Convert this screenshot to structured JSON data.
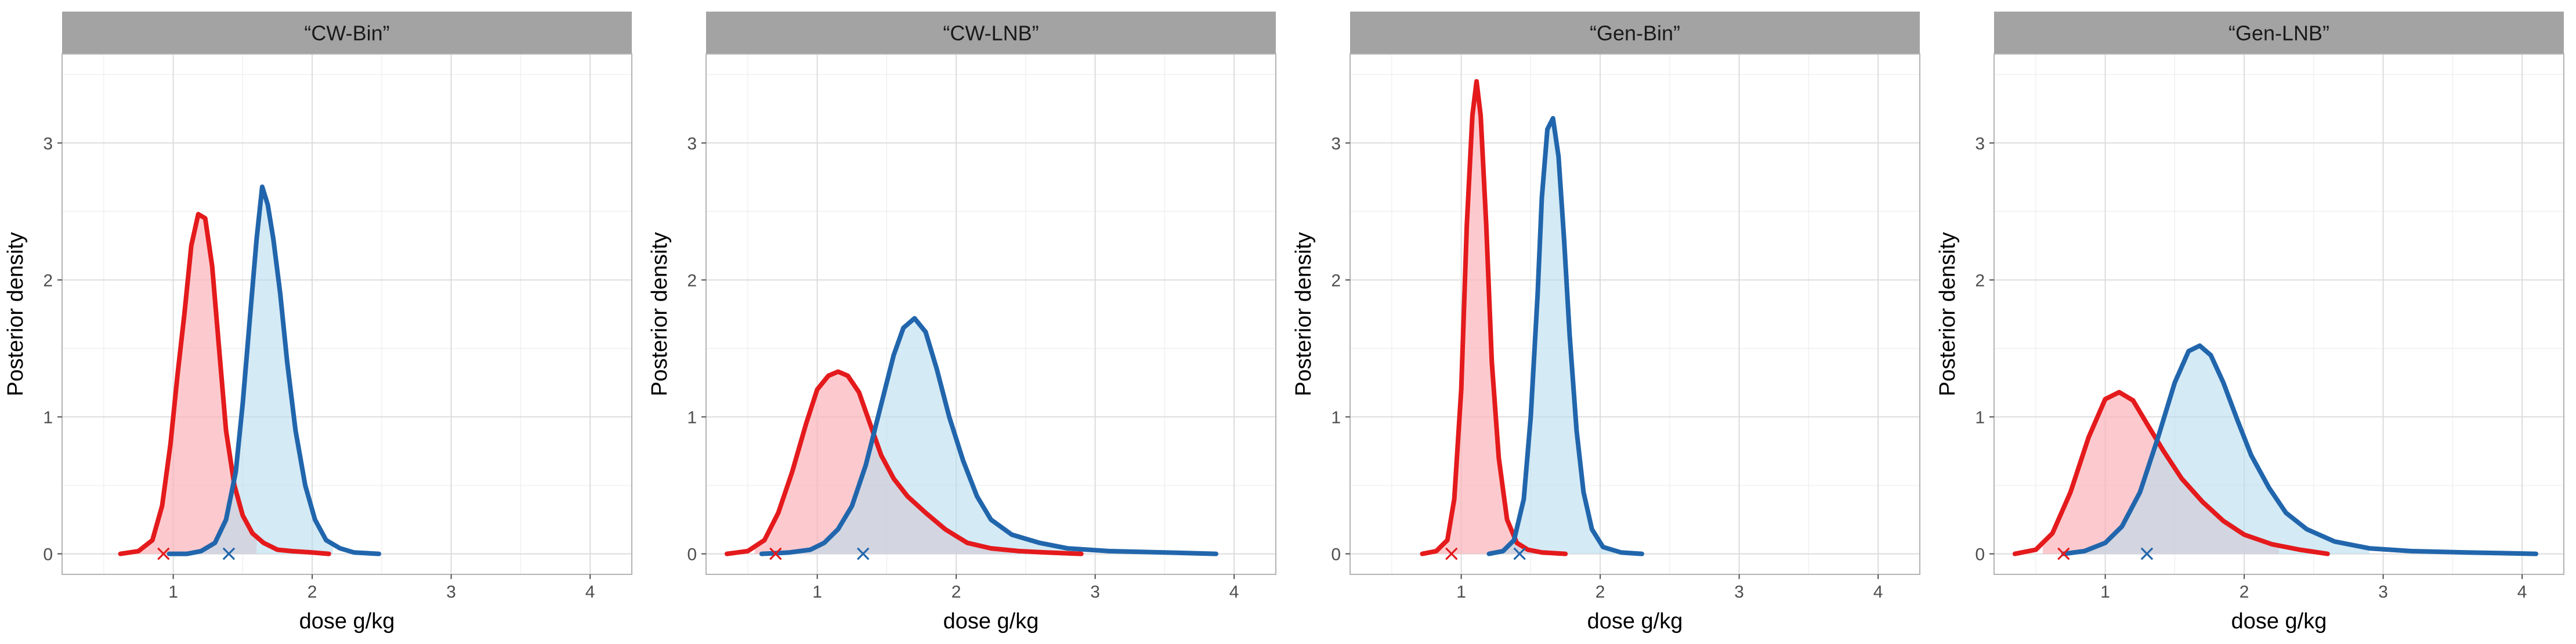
{
  "chart_data": {
    "type": "line",
    "xlabel": "dose g/kg",
    "ylabel": "Posterior density",
    "xlim": [
      0.2,
      4.3
    ],
    "ylim": [
      -0.15,
      3.65
    ],
    "x_ticks": [
      "1",
      "2",
      "3",
      "4"
    ],
    "y_ticks": [
      "0",
      "1",
      "2",
      "3"
    ],
    "grid": true,
    "series_colors": {
      "red": "#e41a1c",
      "blue": "#2166ac"
    },
    "fill_colors": {
      "red": "#fbb4b9",
      "blue": "#b8dcee"
    },
    "marker_symbol": "×",
    "panels": [
      {
        "title": "“CW-Bin”",
        "red_marker_x": 0.93,
        "blue_marker_x": 1.4,
        "red_fill_range": [
          0.72,
          1.6
        ],
        "blue_fill_range": [
          1.2,
          2.15
        ],
        "red": {
          "x": [
            0.62,
            0.75,
            0.85,
            0.92,
            0.98,
            1.03,
            1.08,
            1.13,
            1.18,
            1.23,
            1.28,
            1.33,
            1.38,
            1.44,
            1.5,
            1.57,
            1.65,
            1.75,
            1.85,
            2.0,
            2.12
          ],
          "y": [
            0.0,
            0.02,
            0.1,
            0.35,
            0.8,
            1.3,
            1.75,
            2.25,
            2.48,
            2.45,
            2.1,
            1.5,
            0.9,
            0.5,
            0.28,
            0.15,
            0.08,
            0.03,
            0.02,
            0.01,
            0.0
          ]
        },
        "blue": {
          "x": [
            0.97,
            1.1,
            1.2,
            1.3,
            1.38,
            1.45,
            1.5,
            1.55,
            1.6,
            1.64,
            1.68,
            1.72,
            1.77,
            1.82,
            1.88,
            1.95,
            2.02,
            2.1,
            2.2,
            2.3,
            2.48
          ],
          "y": [
            0.0,
            0.0,
            0.02,
            0.08,
            0.25,
            0.6,
            1.1,
            1.7,
            2.3,
            2.68,
            2.55,
            2.3,
            1.9,
            1.4,
            0.9,
            0.5,
            0.25,
            0.1,
            0.04,
            0.01,
            0.0
          ]
        }
      },
      {
        "title": "“CW-LNB”",
        "red_marker_x": 0.7,
        "blue_marker_x": 1.33,
        "red_fill_range": [
          0.55,
          2.4
        ],
        "blue_fill_range": [
          0.8,
          2.85
        ],
        "red": {
          "x": [
            0.35,
            0.5,
            0.62,
            0.72,
            0.82,
            0.92,
            1.0,
            1.08,
            1.15,
            1.22,
            1.3,
            1.38,
            1.46,
            1.55,
            1.65,
            1.78,
            1.92,
            2.08,
            2.25,
            2.45,
            2.65,
            2.9
          ],
          "y": [
            0.0,
            0.02,
            0.1,
            0.3,
            0.6,
            0.95,
            1.2,
            1.3,
            1.33,
            1.3,
            1.18,
            0.95,
            0.72,
            0.55,
            0.42,
            0.3,
            0.18,
            0.08,
            0.04,
            0.02,
            0.01,
            0.0
          ]
        },
        "blue": {
          "x": [
            0.6,
            0.8,
            0.95,
            1.05,
            1.15,
            1.25,
            1.35,
            1.45,
            1.55,
            1.62,
            1.7,
            1.78,
            1.86,
            1.95,
            2.05,
            2.15,
            2.25,
            2.4,
            2.6,
            2.8,
            3.1,
            3.5,
            3.87
          ],
          "y": [
            0.0,
            0.01,
            0.03,
            0.08,
            0.18,
            0.35,
            0.65,
            1.05,
            1.45,
            1.65,
            1.72,
            1.62,
            1.35,
            1.0,
            0.68,
            0.42,
            0.25,
            0.14,
            0.08,
            0.04,
            0.02,
            0.01,
            0.0
          ]
        }
      },
      {
        "title": "“Gen-Bin”",
        "red_marker_x": 0.93,
        "blue_marker_x": 1.42,
        "red_fill_range": [
          0.78,
          1.7
        ],
        "blue_fill_range": [
          1.15,
          2.1
        ],
        "red": {
          "x": [
            0.72,
            0.82,
            0.9,
            0.95,
            1.0,
            1.04,
            1.08,
            1.11,
            1.14,
            1.18,
            1.22,
            1.27,
            1.33,
            1.4,
            1.48,
            1.58,
            1.75
          ],
          "y": [
            0.0,
            0.02,
            0.1,
            0.4,
            1.2,
            2.4,
            3.2,
            3.45,
            3.2,
            2.4,
            1.4,
            0.7,
            0.25,
            0.08,
            0.03,
            0.01,
            0.0
          ]
        },
        "blue": {
          "x": [
            1.2,
            1.3,
            1.38,
            1.45,
            1.5,
            1.55,
            1.58,
            1.62,
            1.66,
            1.7,
            1.74,
            1.78,
            1.83,
            1.88,
            1.94,
            2.02,
            2.15,
            2.3
          ],
          "y": [
            0.0,
            0.02,
            0.1,
            0.4,
            1.0,
            1.9,
            2.6,
            3.1,
            3.18,
            2.9,
            2.3,
            1.6,
            0.9,
            0.45,
            0.18,
            0.05,
            0.01,
            0.0
          ]
        }
      },
      {
        "title": "“Gen-LNB”",
        "red_marker_x": 0.7,
        "blue_marker_x": 1.3,
        "red_fill_range": [
          0.55,
          2.25
        ],
        "blue_fill_range": [
          0.75,
          2.9
        ],
        "red": {
          "x": [
            0.35,
            0.5,
            0.62,
            0.75,
            0.88,
            1.0,
            1.1,
            1.2,
            1.3,
            1.42,
            1.55,
            1.7,
            1.85,
            2.0,
            2.2,
            2.4,
            2.6
          ],
          "y": [
            0.0,
            0.03,
            0.15,
            0.45,
            0.85,
            1.13,
            1.18,
            1.12,
            0.95,
            0.75,
            0.55,
            0.38,
            0.24,
            0.14,
            0.07,
            0.03,
            0.0
          ]
        },
        "blue": {
          "x": [
            0.7,
            0.85,
            1.0,
            1.12,
            1.25,
            1.38,
            1.5,
            1.6,
            1.68,
            1.76,
            1.85,
            1.95,
            2.05,
            2.18,
            2.3,
            2.45,
            2.65,
            2.9,
            3.2,
            3.6,
            4.1
          ],
          "y": [
            0.0,
            0.02,
            0.08,
            0.2,
            0.45,
            0.85,
            1.25,
            1.48,
            1.52,
            1.45,
            1.25,
            0.98,
            0.72,
            0.48,
            0.3,
            0.18,
            0.09,
            0.04,
            0.02,
            0.01,
            0.0
          ]
        }
      }
    ]
  }
}
